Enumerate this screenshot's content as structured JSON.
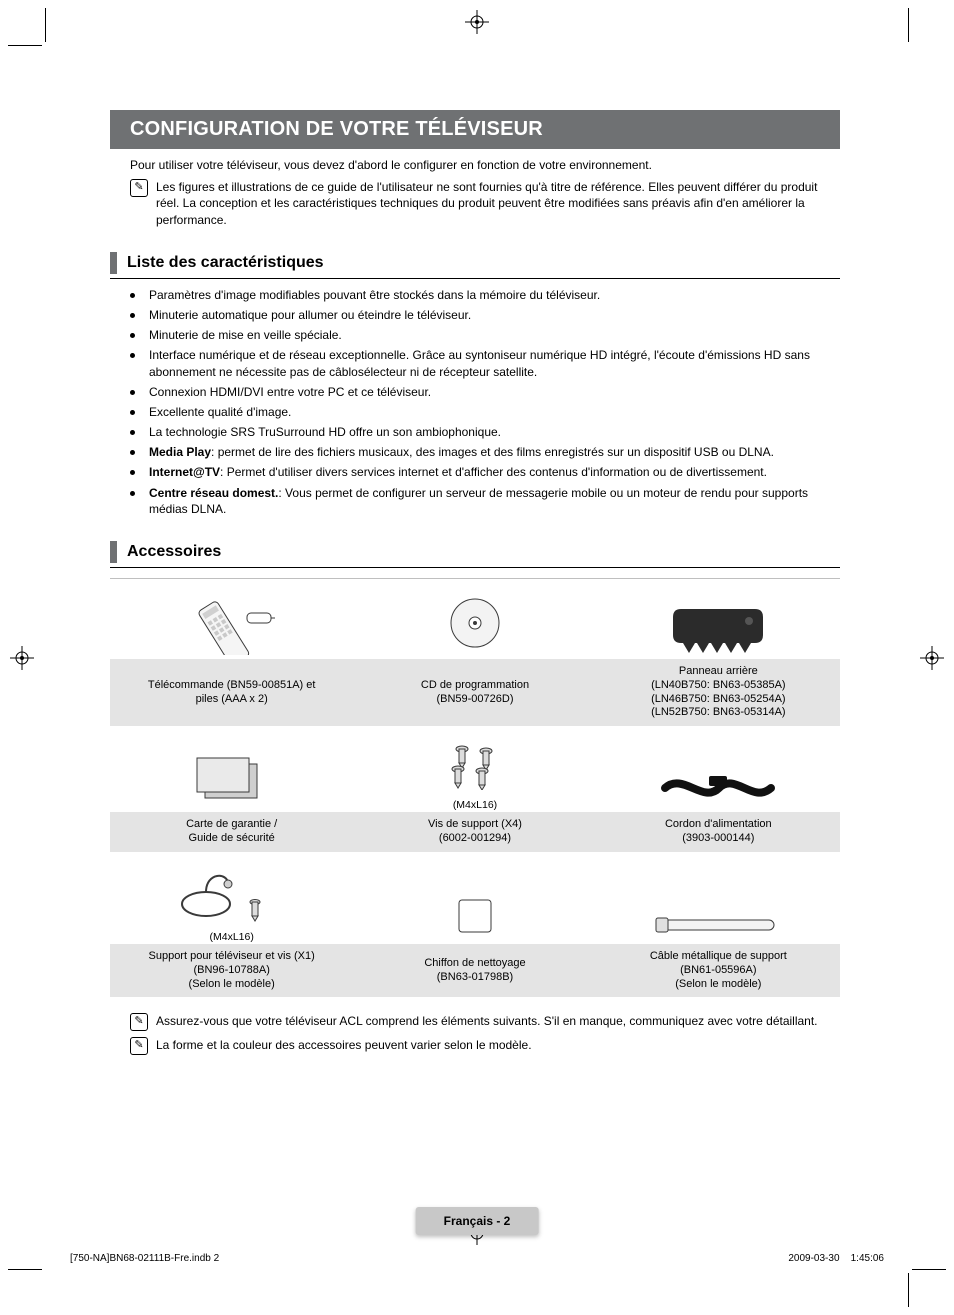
{
  "title_bar": "CONFIGURATION DE VOTRE TÉLÉVISEUR",
  "intro": "Pour utiliser votre téléviseur, vous devez d'abord le configurer en fonction de votre environnement.",
  "note1": "Les figures et illustrations de ce guide de l'utilisateur ne sont fournies qu'à titre de référence. Elles peuvent différer du produit réel. La conception et les caractéristiques techniques du produit peuvent être modifiées sans préavis afin d'en améliorer la performance.",
  "sections": {
    "features": {
      "heading": "Liste des caractéristiques",
      "items": [
        {
          "text": "Paramètres d'image modifiables pouvant être stockés dans la mémoire du téléviseur."
        },
        {
          "text": "Minuterie automatique pour allumer ou éteindre le téléviseur."
        },
        {
          "text": "Minuterie de mise en veille spéciale."
        },
        {
          "text": "Interface numérique et de réseau exceptionnelle. Grâce au syntoniseur numérique HD intégré, l'écoute d'émissions HD sans abonnement ne nécessite pas de câblosélecteur ni de récepteur satellite."
        },
        {
          "text": "Connexion HDMI/DVI entre votre PC et ce téléviseur."
        },
        {
          "text": "Excellente qualité d'image."
        },
        {
          "text": "La technologie SRS TruSurround HD offre un son ambiophonique."
        },
        {
          "bold": "Media Play",
          "text": ": permet de lire des fichiers musicaux, des images et des films enregistrés sur un dispositif USB ou DLNA."
        },
        {
          "bold": "Internet@TV",
          "text": ": Permet d'utiliser divers services internet et d'afficher des contenus d'information ou de divertissement."
        },
        {
          "bold": "Centre réseau domest.",
          "text": ": Vous permet de configurer un serveur de messagerie mobile ou un moteur de rendu pour supports médias DLNA."
        }
      ]
    },
    "accessories": {
      "heading": "Accessoires",
      "rows": [
        {
          "cells": [
            {
              "icon": "remote",
              "lines": [
                "Télécommande (BN59-00851A) et",
                "piles (AAA x 2)"
              ]
            },
            {
              "icon": "cd",
              "lines": [
                "CD de programmation",
                "(BN59-00726D)"
              ]
            },
            {
              "icon": "cover",
              "lines": [
                "Panneau arrière",
                "(LN40B750: BN63-05385A)",
                "(LN46B750: BN63-05254A)",
                "(LN52B750: BN63-05314A)"
              ]
            }
          ]
        },
        {
          "cells": [
            {
              "icon": "cards",
              "lines": [
                "Carte de garantie /",
                "Guide de sécurité"
              ]
            },
            {
              "icon": "screws",
              "sub": "(M4xL16)",
              "lines": [
                "Vis de support (X4)",
                "(6002-001294)"
              ]
            },
            {
              "icon": "cord",
              "lines": [
                "Cordon d'alimentation",
                "(3903-000144)"
              ]
            }
          ]
        },
        {
          "cells": [
            {
              "icon": "holder",
              "sub": "(M4xL16)",
              "lines": [
                "Support pour téléviseur et vis (X1)",
                "(BN96-10788A)",
                "(Selon le modèle)"
              ]
            },
            {
              "icon": "cloth",
              "lines": [
                "Chiffon de nettoyage",
                "(BN63-01798B)"
              ]
            },
            {
              "icon": "tie",
              "lines": [
                "Câble métallique de support",
                "(BN61-05596A)",
                "(Selon le modèle)"
              ]
            }
          ]
        }
      ],
      "bottom_notes": [
        "Assurez-vous que votre téléviseur ACL comprend les éléments suivants. S'il en manque, communiquez avec votre détaillant.",
        "La forme et la couleur des accessoires peuvent varier selon le modèle."
      ]
    }
  },
  "page_tab": "Français - 2",
  "foot_left": "[750-NA]BN68-02111B-Fre.indb   2",
  "foot_right": "2009-03-30      1:45:06",
  "colors": {
    "title_bg": "#6f7173",
    "caption_bg": "#e4e4e4",
    "tab_bg": "#c8c8c8"
  }
}
